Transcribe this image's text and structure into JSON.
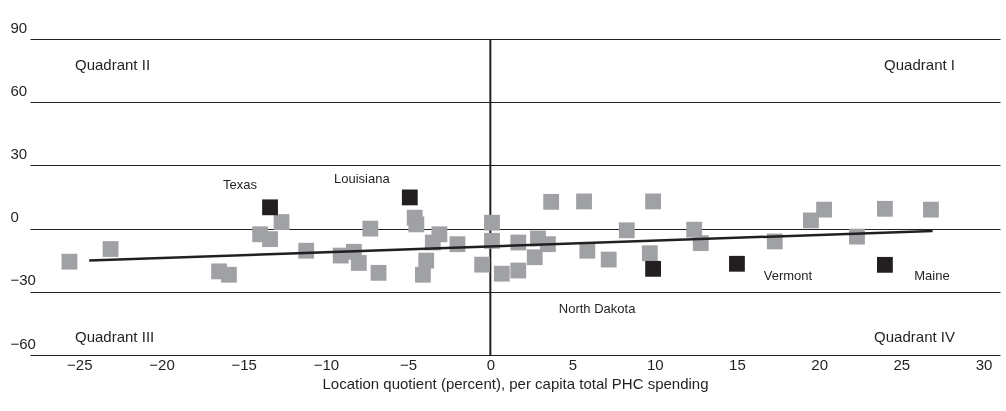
{
  "chart_data": {
    "type": "scatter",
    "xlabel": "Location quotient (percent), per capita total PHC spending",
    "xlim": [
      -28,
      31
    ],
    "xticks": [
      -25,
      -20,
      -15,
      -10,
      -5,
      0,
      5,
      10,
      15,
      20,
      25,
      30
    ],
    "ylim": [
      -60,
      90
    ],
    "yticks": [
      -60,
      -30,
      0,
      30,
      60,
      90
    ],
    "grid": "y",
    "marker": "square",
    "series": [
      {
        "color": "#a0a1a5",
        "x": [
          -25.6,
          -23.1,
          -12.7,
          -14.0,
          -13.4,
          -16.5,
          -15.9,
          -11.2,
          -9.1,
          -8.3,
          -8.0,
          -7.3,
          -6.8,
          -4.6,
          -4.5,
          -3.1,
          -3.5,
          -3.9,
          -4.1,
          -2.0,
          -0.5,
          0.1,
          0.1,
          0.7,
          1.7,
          1.7,
          2.7,
          2.9,
          3.5,
          3.7,
          5.7,
          5.9,
          7.2,
          8.3,
          9.7,
          9.9,
          12.4,
          12.8,
          17.3,
          19.5,
          20.3,
          22.3,
          24.0,
          26.8
        ],
        "values": [
          -15.7,
          -9.7,
          3.1,
          -2.7,
          -5.0,
          -20.3,
          -21.9,
          -10.5,
          -12.8,
          -11.0,
          -16.3,
          0,
          -21.0,
          5.2,
          2.0,
          -2.7,
          -6.6,
          -15.2,
          -21.9,
          -7.4,
          -17.1,
          2.8,
          -5.8,
          -21.4,
          -6.6,
          -19.9,
          -13.6,
          -4.7,
          -7.4,
          12.7,
          12.9,
          -10.5,
          -14.7,
          -0.8,
          -11.7,
          12.9,
          -0.5,
          -6.9,
          -6.1,
          3.9,
          9.0,
          -3.8,
          9.4,
          9.0
        ]
      },
      {
        "color": "#231f20",
        "x": [
          -13.4,
          -4.9,
          9.9,
          15.0,
          24.0
        ],
        "values": [
          10.1,
          14.8,
          -19.1,
          -16.7,
          -17.2
        ]
      },
      {
        "type": "line",
        "color": "#231f20",
        "marker": "none",
        "x": [
          -24.4,
          26.9
        ],
        "values": [
          -15.2,
          -1.1
        ]
      }
    ],
    "ref_lines": [
      {
        "axis": "x",
        "value": 0,
        "color": "#231f20"
      }
    ],
    "annotations": [
      "Quadrant II",
      "Quadrant I",
      "Quadrant III",
      "Quadrant IV",
      {
        "text": "Texas",
        "x": -13.4,
        "y": 10.1
      },
      {
        "text": "Louisiana",
        "x": -4.9,
        "y": 14.8
      },
      {
        "text": "North Dakota",
        "x": 9.9,
        "y": -19.1
      },
      {
        "text": "Vermont",
        "x": 15.0,
        "y": -16.7
      },
      {
        "text": "Maine",
        "x": 24.0,
        "y": -17.2
      }
    ]
  }
}
